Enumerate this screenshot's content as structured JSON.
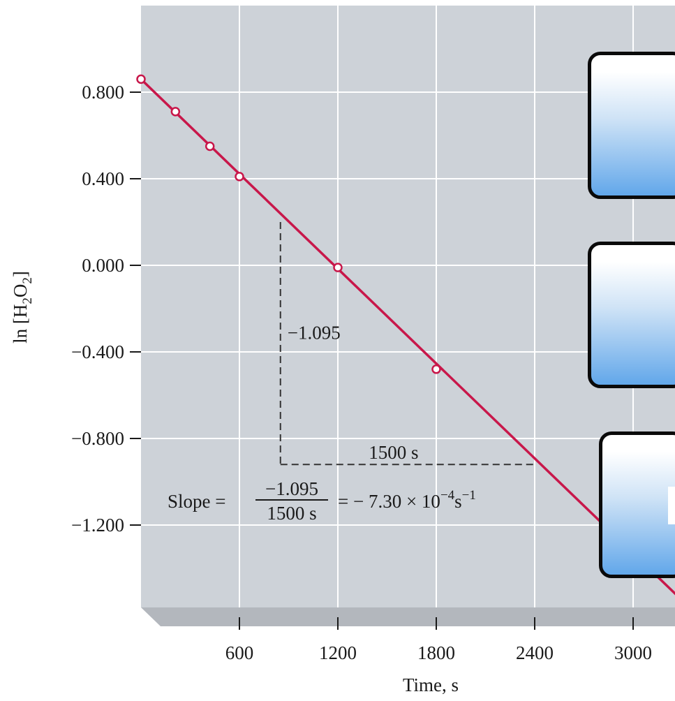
{
  "chart_data": {
    "type": "scatter",
    "xlabel": "Time, s",
    "ylabel": "ln [H2O2]",
    "xlim": [
      0,
      3300
    ],
    "ylim": [
      -1.6,
      1.0
    ],
    "x_ticks": [
      "600",
      "1200",
      "1800",
      "2400",
      "3000"
    ],
    "x_tick_values": [
      600,
      1200,
      1800,
      2400,
      3000
    ],
    "y_ticks": [
      "0.800",
      "0.400",
      "0.000",
      "−0.400",
      "−0.800",
      "−1.200"
    ],
    "y_tick_values": [
      0.8,
      0.4,
      0.0,
      -0.4,
      -0.8,
      -1.2
    ],
    "points": [
      {
        "x": 0,
        "y": 0.86
      },
      {
        "x": 210,
        "y": 0.71
      },
      {
        "x": 420,
        "y": 0.55
      },
      {
        "x": 600,
        "y": 0.41
      },
      {
        "x": 1200,
        "y": -0.01
      },
      {
        "x": 1800,
        "y": -0.48
      }
    ],
    "fit_line": {
      "x": [
        0,
        3300
      ],
      "y": [
        0.86,
        -1.549
      ]
    },
    "annotations": {
      "rise": {
        "x": 850,
        "y_from": 0.2,
        "y_to": -0.92,
        "label": "−1.095"
      },
      "run": {
        "y": -0.92,
        "x_from": 850,
        "x_to": 2400,
        "label": "1500 s"
      },
      "slope": {
        "prefix": "Slope = ",
        "numerator": "−1.095",
        "denominator": "1500 s",
        "result": "= − 7.30 × 10",
        "exponent": "−4",
        "unit": "s",
        "unit_exponent": "−1"
      }
    },
    "grid": true,
    "colors": {
      "line": "#c8174a",
      "plot_bg": "#cdd2d8",
      "grid": "#ffffff"
    }
  },
  "overlay_boxes": [
    {
      "id": "box-1"
    },
    {
      "id": "box-2"
    },
    {
      "id": "box-3"
    }
  ]
}
